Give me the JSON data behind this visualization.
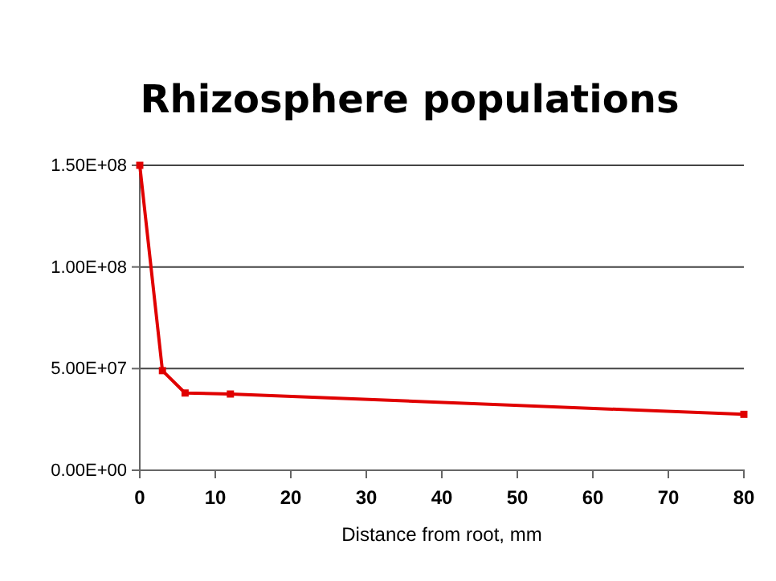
{
  "chart_data": {
    "type": "line",
    "title": "Rhizosphere populations",
    "xlabel": "Distance from root, mm",
    "x": [
      0,
      3,
      6,
      12,
      80
    ],
    "series": [
      {
        "color": "#e00000",
        "values": [
          150000000,
          49000000,
          38000000,
          37500000,
          27500000
        ]
      }
    ],
    "xlim": [
      0,
      80
    ],
    "xticks": [
      0,
      10,
      20,
      30,
      40,
      50,
      60,
      70,
      80
    ],
    "ylim": [
      0,
      150000000
    ],
    "yticks": [
      {
        "value": 0,
        "label": "0.00E+00"
      },
      {
        "value": 50000000,
        "label": "5.00E+07"
      },
      {
        "value": 100000000,
        "label": "1.00E+08"
      },
      {
        "value": 150000000,
        "label": "1.50E+08"
      }
    ],
    "grid": "y",
    "marker": "square",
    "line_style": "solid"
  }
}
